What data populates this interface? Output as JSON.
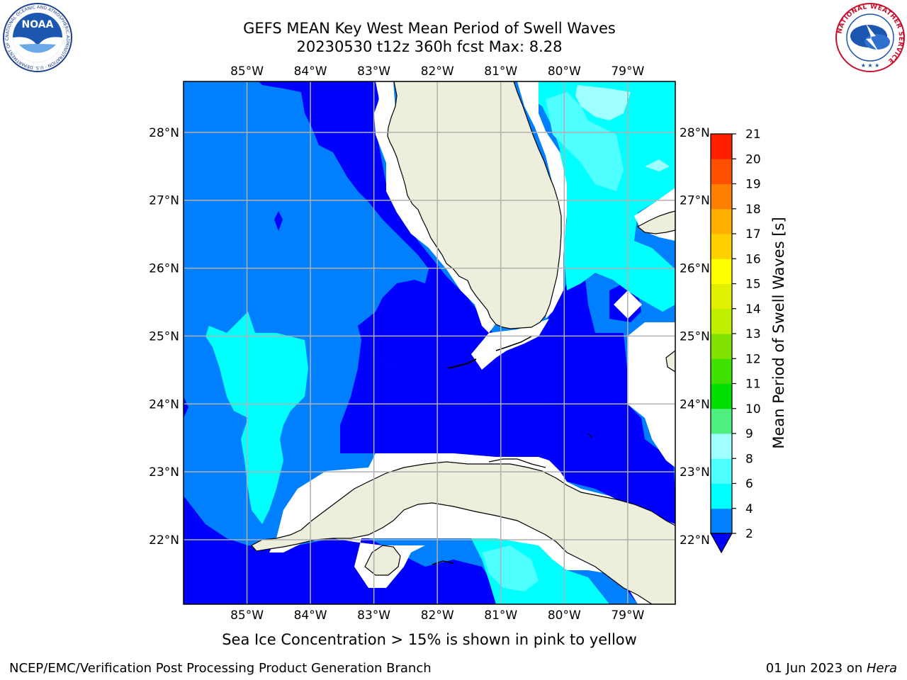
{
  "title_line1": "GEFS MEAN Key West Mean Period of Swell Waves",
  "title_line2": "20230530 t12z 360h fcst   Max: 8.28",
  "bottom_note": "Sea Ice Concentration > 15% is shown in pink to yellow",
  "footer_left": "NCEP/EMC/Verification Post Processing Product Generation Branch",
  "footer_date": "01 Jun 2023 on ",
  "footer_host": "Hera",
  "logos": {
    "left": "noaa-logo",
    "right": "nws-logo"
  },
  "logo_text": {
    "noaa": "NOAA",
    "noaa_ring": "NATIONAL OCEANIC AND ATMOSPHERIC ADMINISTRATION · U.S. DEPARTMENT OF COMMERCE",
    "nws_ring": "NATIONAL WEATHER SERVICE"
  },
  "map": {
    "lon_range": [
      -86.0,
      -78.25
    ],
    "lat_range": [
      21.05,
      28.75
    ],
    "lon_ticks": [
      {
        "v": -85,
        "label": "85°W"
      },
      {
        "v": -84,
        "label": "84°W"
      },
      {
        "v": -83,
        "label": "83°W"
      },
      {
        "v": -82,
        "label": "82°W"
      },
      {
        "v": -81,
        "label": "81°W"
      },
      {
        "v": -80,
        "label": "80°W"
      },
      {
        "v": -79,
        "label": "79°W"
      }
    ],
    "lat_ticks": [
      {
        "v": 28,
        "label": "28°N"
      },
      {
        "v": 27,
        "label": "27°N"
      },
      {
        "v": 26,
        "label": "26°N"
      },
      {
        "v": 25,
        "label": "25°N"
      },
      {
        "v": 24,
        "label": "24°N"
      },
      {
        "v": 23,
        "label": "23°N"
      },
      {
        "v": 22,
        "label": "22°N"
      }
    ],
    "colors": {
      "ocean_2_4": "#0080ff",
      "deep_0_2": "#0000ff",
      "cyan_4_6": "#00ffff",
      "light_6_8": "#50ffff",
      "pale_8_9": "#a0ffff",
      "land": "#eeeedd",
      "mask": "#ffffff",
      "grid": "#b0b0b0"
    }
  },
  "colorbar": {
    "label": "Mean Period of Swell Waves [s]",
    "ticks": [
      "2",
      "4",
      "6",
      "8",
      "9",
      "10",
      "11",
      "12",
      "13",
      "14",
      "15",
      "16",
      "17",
      "18",
      "19",
      "20",
      "21"
    ],
    "colors": [
      "#0080ff",
      "#00ffff",
      "#50ffff",
      "#a0ffff",
      "#50f080",
      "#00e000",
      "#40e000",
      "#80e000",
      "#c0f000",
      "#e0f000",
      "#ffff00",
      "#ffd000",
      "#ffb000",
      "#ff8000",
      "#ff5000",
      "#ff2000"
    ],
    "under_color": "#0000ff"
  }
}
